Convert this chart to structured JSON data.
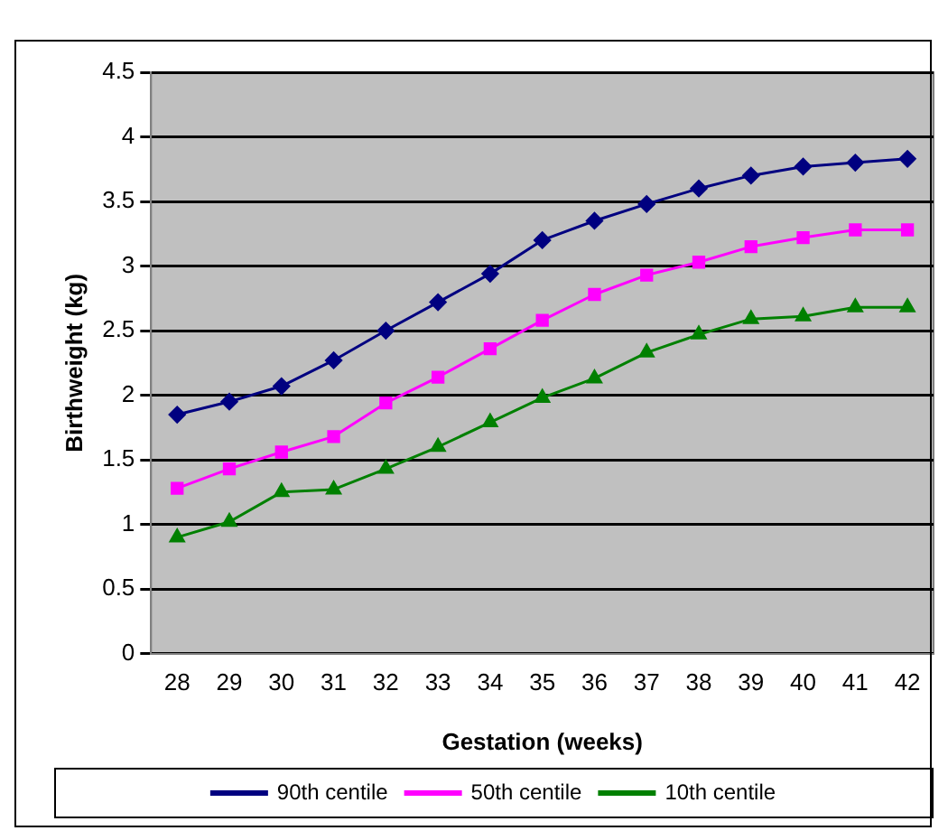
{
  "chart_data": {
    "type": "line",
    "xlabel": "Gestation (weeks)",
    "ylabel": "Birthweight (kg)",
    "categories": [
      "28",
      "29",
      "30",
      "31",
      "32",
      "33",
      "34",
      "35",
      "36",
      "37",
      "38",
      "39",
      "40",
      "41",
      "42"
    ],
    "ylim": [
      0,
      4.5
    ],
    "yticks": [
      0,
      0.5,
      1,
      1.5,
      2,
      2.5,
      3,
      3.5,
      4,
      4.5
    ],
    "grid": "y",
    "legend": "bottom",
    "line_style": "solid",
    "series": [
      {
        "name": "90th centile",
        "color": "#000080",
        "marker": "diamond",
        "values": [
          1.85,
          1.95,
          2.07,
          2.27,
          2.5,
          2.72,
          2.94,
          3.2,
          3.35,
          3.48,
          3.6,
          3.7,
          3.77,
          3.8,
          3.83
        ]
      },
      {
        "name": "50th centile",
        "color": "#ff00ff",
        "marker": "square",
        "values": [
          1.28,
          1.43,
          1.56,
          1.68,
          1.94,
          2.14,
          2.36,
          2.58,
          2.78,
          2.93,
          3.03,
          3.15,
          3.22,
          3.28,
          3.28
        ]
      },
      {
        "name": "10th centile",
        "color": "#008000",
        "marker": "triangle",
        "values": [
          0.9,
          1.02,
          1.25,
          1.27,
          1.43,
          1.6,
          1.79,
          1.98,
          2.13,
          2.33,
          2.47,
          2.59,
          2.61,
          2.68,
          2.68
        ]
      }
    ]
  }
}
